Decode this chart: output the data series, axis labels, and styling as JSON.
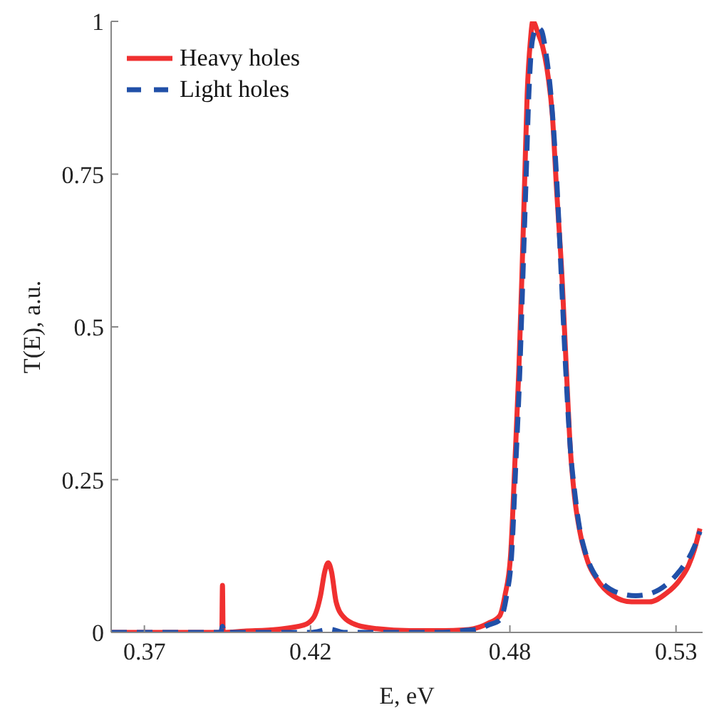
{
  "chart_data": {
    "type": "line",
    "xlabel": "E, eV",
    "ylabel": "T(E), a.u.",
    "xlim": [
      0.36,
      0.538
    ],
    "ylim": [
      0,
      1
    ],
    "xticks": [
      0.37,
      0.42,
      0.48,
      0.53
    ],
    "yticks": [
      0,
      0.25,
      0.5,
      0.75,
      1
    ],
    "grid": false,
    "legend": "top left",
    "marker": "none",
    "series": [
      {
        "name": "Heavy holes",
        "color": "#f03030",
        "line_style": "solid",
        "x": [
          0.36,
          0.39,
          0.3933,
          0.3935,
          0.3937,
          0.4,
          0.41,
          0.418,
          0.421,
          0.423,
          0.4243,
          0.4253,
          0.4263,
          0.4277,
          0.43,
          0.434,
          0.44,
          0.45,
          0.46,
          0.466,
          0.469,
          0.471,
          0.4735,
          0.4769,
          0.4785,
          0.4802,
          0.4815,
          0.4827,
          0.4836,
          0.4844,
          0.4852,
          0.4862,
          0.4869,
          0.4885,
          0.4898,
          0.4915,
          0.4928,
          0.494,
          0.4957,
          0.497,
          0.4982,
          0.4995,
          0.5011,
          0.5035,
          0.5062,
          0.511,
          0.5166,
          0.522,
          0.5271,
          0.531,
          0.5338,
          0.5355,
          0.5372
        ],
        "values": [
          0,
          0,
          0,
          0.077,
          0,
          0.002,
          0.005,
          0.012,
          0.025,
          0.06,
          0.1,
          0.114,
          0.1,
          0.05,
          0.025,
          0.012,
          0.006,
          0.003,
          0.003,
          0.004,
          0.006,
          0.009,
          0.015,
          0.027,
          0.06,
          0.125,
          0.277,
          0.43,
          0.58,
          0.73,
          0.88,
          0.97,
          1,
          0.98,
          0.96,
          0.91,
          0.845,
          0.73,
          0.58,
          0.43,
          0.3,
          0.22,
          0.164,
          0.115,
          0.087,
          0.06,
          0.05,
          0.05,
          0.064,
          0.085,
          0.11,
          0.135,
          0.17
        ]
      },
      {
        "name": "Light holes",
        "color": "#2150a8",
        "line_style": "dashed",
        "x": [
          0.36,
          0.393,
          0.3935,
          0.394,
          0.4,
          0.42,
          0.426,
          0.43,
          0.44,
          0.46,
          0.466,
          0.471,
          0.4735,
          0.4769,
          0.479,
          0.4805,
          0.4818,
          0.483,
          0.4839,
          0.4848,
          0.4857,
          0.4868,
          0.4882,
          0.4895,
          0.4908,
          0.4925,
          0.4942,
          0.4955,
          0.4968,
          0.4982,
          0.4995,
          0.501,
          0.5025,
          0.505,
          0.508,
          0.5125,
          0.5179,
          0.523,
          0.5275,
          0.531,
          0.5355,
          0.5372
        ],
        "values": [
          0,
          0,
          0.01,
          0,
          0,
          0,
          0.005,
          0,
          0,
          0,
          0.003,
          0.006,
          0.012,
          0.02,
          0.06,
          0.125,
          0.277,
          0.43,
          0.58,
          0.73,
          0.88,
          0.97,
          0.99,
          0.985,
          0.95,
          0.87,
          0.73,
          0.58,
          0.43,
          0.3,
          0.23,
          0.17,
          0.135,
          0.1,
          0.08,
          0.065,
          0.06,
          0.065,
          0.08,
          0.1,
          0.14,
          0.165
        ]
      }
    ]
  }
}
